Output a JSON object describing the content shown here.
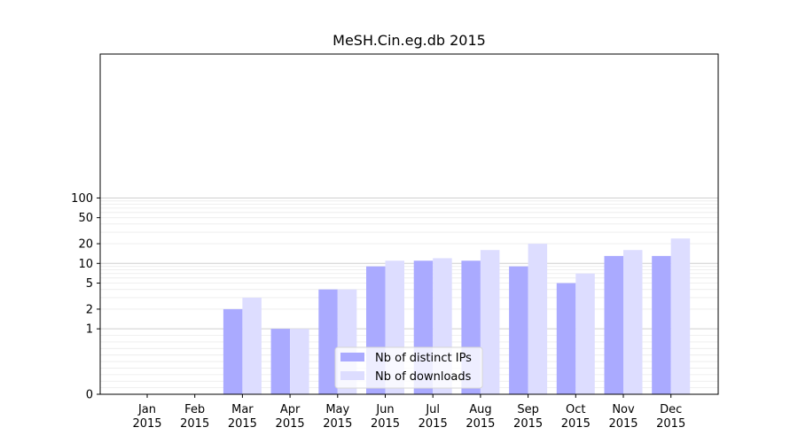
{
  "chart_data": {
    "type": "bar",
    "title": "MeSH.Cin.eg.db 2015",
    "xlabel": "",
    "ylabel": "",
    "categories": [
      [
        "Jan",
        "2015"
      ],
      [
        "Feb",
        "2015"
      ],
      [
        "Mar",
        "2015"
      ],
      [
        "Apr",
        "2015"
      ],
      [
        "May",
        "2015"
      ],
      [
        "Jun",
        "2015"
      ],
      [
        "Jul",
        "2015"
      ],
      [
        "Aug",
        "2015"
      ],
      [
        "Sep",
        "2015"
      ],
      [
        "Oct",
        "2015"
      ],
      [
        "Nov",
        "2015"
      ],
      [
        "Dec",
        "2015"
      ]
    ],
    "series": [
      {
        "name": "Nb of distinct IPs",
        "color": "#aaaaff",
        "values": [
          0,
          0,
          2,
          1,
          4,
          9,
          11,
          11,
          9,
          5,
          13,
          13
        ]
      },
      {
        "name": "Nb of downloads",
        "color": "#ddddff",
        "values": [
          0,
          0,
          3,
          1,
          4,
          11,
          12,
          16,
          20,
          7,
          16,
          24
        ]
      }
    ],
    "yscale": "symlog",
    "ylim": [
      0,
      120
    ],
    "yticks": [
      0,
      1,
      2,
      5,
      10,
      20,
      50,
      100
    ],
    "grid": true,
    "legend": "bottom-center"
  }
}
